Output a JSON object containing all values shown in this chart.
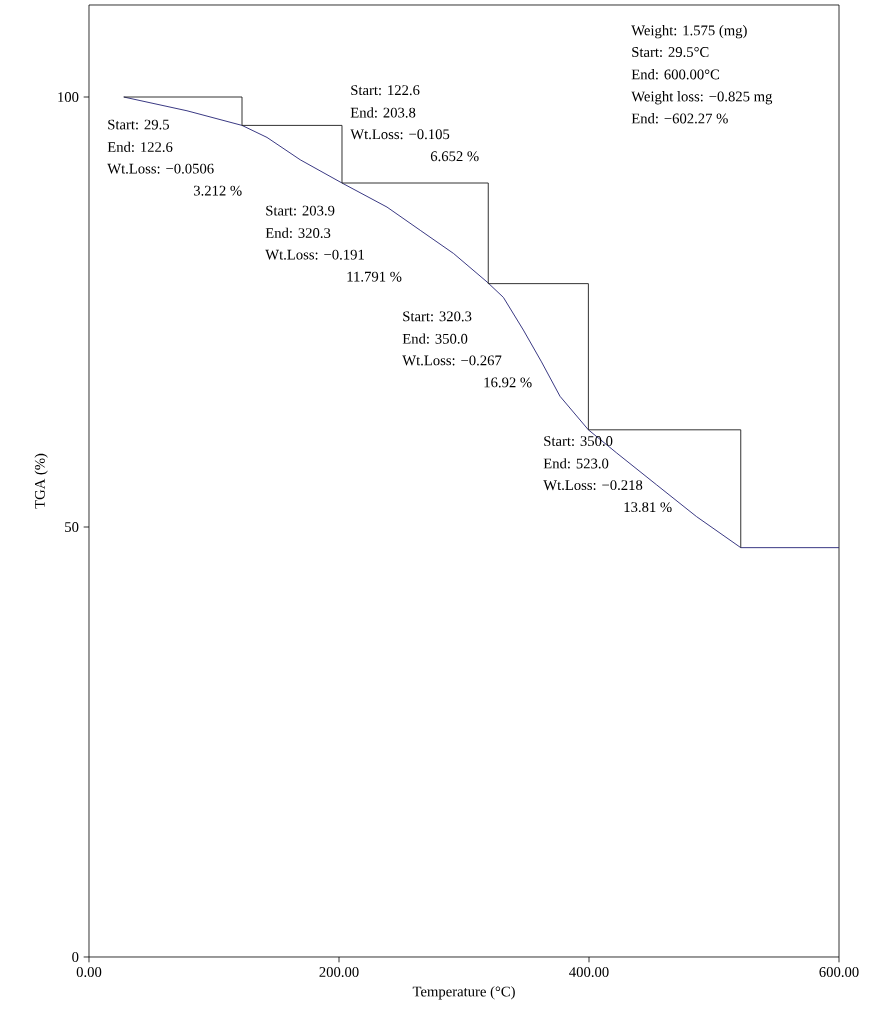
{
  "chart_data": {
    "type": "line",
    "xlabel": "Temperature (°C)",
    "ylabel": "TGA (%)",
    "xlim": [
      0,
      600
    ],
    "ylim": [
      0,
      110.7
    ],
    "xticks": [
      {
        "value": 0,
        "label": "0.00"
      },
      {
        "value": 200,
        "label": "200.00"
      },
      {
        "value": 400,
        "label": "400.00"
      },
      {
        "value": 600,
        "label": "600.00"
      }
    ],
    "yticks": [
      0,
      50,
      100
    ],
    "series": [
      {
        "color": "#2b2a7a",
        "x": [
          27.8,
          78.4,
          122.4,
          142.4,
          169,
          202.4,
          238.4,
          265,
          291.7,
          318.4,
          331.5,
          347.5,
          362,
          376.8,
          399.5,
          422.2,
          454.1,
          486.1,
          521.4,
          600
        ],
        "values": [
          100,
          98.4,
          96.7,
          95.3,
          92.7,
          90.0,
          87.2,
          84.5,
          81.8,
          78.5,
          76.7,
          72.9,
          69.2,
          65.2,
          61.3,
          58.6,
          54.9,
          51.2,
          47.6,
          47.6
        ]
      },
      {
        "type": "step",
        "color": "#222222",
        "x": [
          27.8,
          122.4,
          202.4,
          319.4,
          399.5,
          521.4
        ],
        "values": [
          100,
          96.7,
          90.0,
          78.3,
          61.3,
          47.6
        ]
      }
    ],
    "annotations": [
      "Start: 29.5",
      "End: 122.6",
      "Wt.Loss:  −0.0506",
      "3.212 %",
      "Start: 122.6",
      "End: 203.8",
      "Wt.Loss:  −0.105",
      "6.652 %",
      "Start: 203.9",
      "End: 320.3",
      "Wt.Loss:  −0.191",
      "11.791 %",
      "Start: 320.3",
      "End: 350.0",
      "Wt.Loss:  −0.267",
      "16.92 %",
      "Start: 350.0",
      "End: 523.0",
      "Wt.Loss:  −0.218",
      "13.81 %",
      "Weight: 1.575 (mg)",
      "Start: 29.5°C",
      "End: 600.00°C",
      "Weight loss:  −0.825 mg",
      "End: −602.27  %"
    ]
  }
}
